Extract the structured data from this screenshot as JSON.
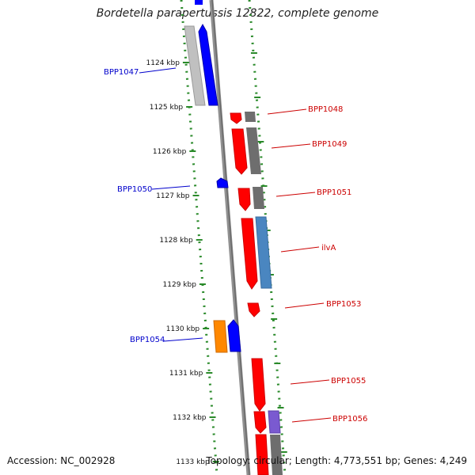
{
  "title": "Bordetella parapertussis 12822, complete genome",
  "accession": "Accession: NC_002928",
  "summary": "Topology: circular; Length: 4,773,551 bp; Genes: 4,249",
  "colors": {
    "forward": "#ff0000",
    "reverse": "#0000ff",
    "grey": "#707070",
    "lightgrey": "#c8c8c8",
    "steelblue": "#4a86c0",
    "orange": "#ff8800",
    "purple": "#7a5ad0",
    "ticks": "#2a8a2a",
    "backbone": "#808080"
  },
  "ticks": [
    "1124 kbp",
    "1125 kbp",
    "1126 kbp",
    "1127 kbp",
    "1128 kbp",
    "1129 kbp",
    "1130 kbp",
    "1131 kbp",
    "1132 kbp",
    "1133 kbp"
  ],
  "genes": [
    {
      "id": "BPP1047",
      "label": "BPP1047",
      "strand": "reverse",
      "color": "blue"
    },
    {
      "id": "BPP1048",
      "label": "BPP1048",
      "strand": "forward",
      "color": "red"
    },
    {
      "id": "BPP1049",
      "label": "BPP1049",
      "strand": "forward",
      "color": "red"
    },
    {
      "id": "BPP1050",
      "label": "BPP1050",
      "strand": "reverse",
      "color": "blue"
    },
    {
      "id": "BPP1051",
      "label": "BPP1051",
      "strand": "forward",
      "color": "red"
    },
    {
      "id": "ilvA",
      "label": "ilvA",
      "strand": "forward",
      "color": "red"
    },
    {
      "id": "BPP1053",
      "label": "BPP1053",
      "strand": "forward",
      "color": "red"
    },
    {
      "id": "BPP1054",
      "label": "BPP1054",
      "strand": "reverse",
      "color": "blue"
    },
    {
      "id": "BPP1055",
      "label": "BPP1055",
      "strand": "forward",
      "color": "red"
    },
    {
      "id": "BPP1056",
      "label": "BPP1056",
      "strand": "forward",
      "color": "red"
    }
  ]
}
